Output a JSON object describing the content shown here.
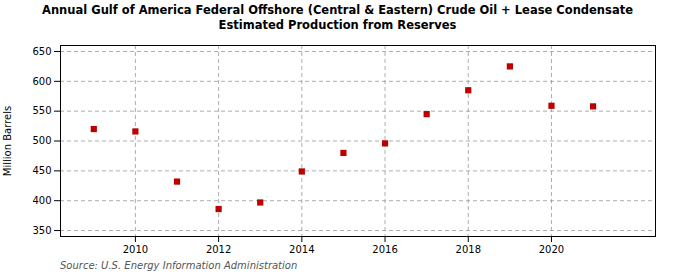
{
  "chart_data": {
    "type": "scatter",
    "title": "Annual Gulf of America Federal Offshore (Central & Eastern) Crude Oil + Lease Condensate\nEstimated Production from Reserves",
    "ylabel": "Million Barrels",
    "source": "Source: U.S. Energy Information Administration",
    "x": [
      2009,
      2010,
      2011,
      2012,
      2013,
      2014,
      2015,
      2016,
      2017,
      2018,
      2019,
      2020,
      2021
    ],
    "values": [
      520,
      516,
      432,
      386,
      397,
      449,
      480,
      496,
      545,
      585,
      625,
      559,
      558
    ],
    "xlim": [
      2008.2,
      2022.5
    ],
    "xticks": [
      2010,
      2012,
      2014,
      2016,
      2018,
      2020
    ],
    "ylim": [
      340,
      660
    ],
    "yticks": [
      350,
      400,
      450,
      500,
      550,
      600,
      650
    ],
    "color": "#bb0000",
    "marker": "square",
    "grid": true
  }
}
